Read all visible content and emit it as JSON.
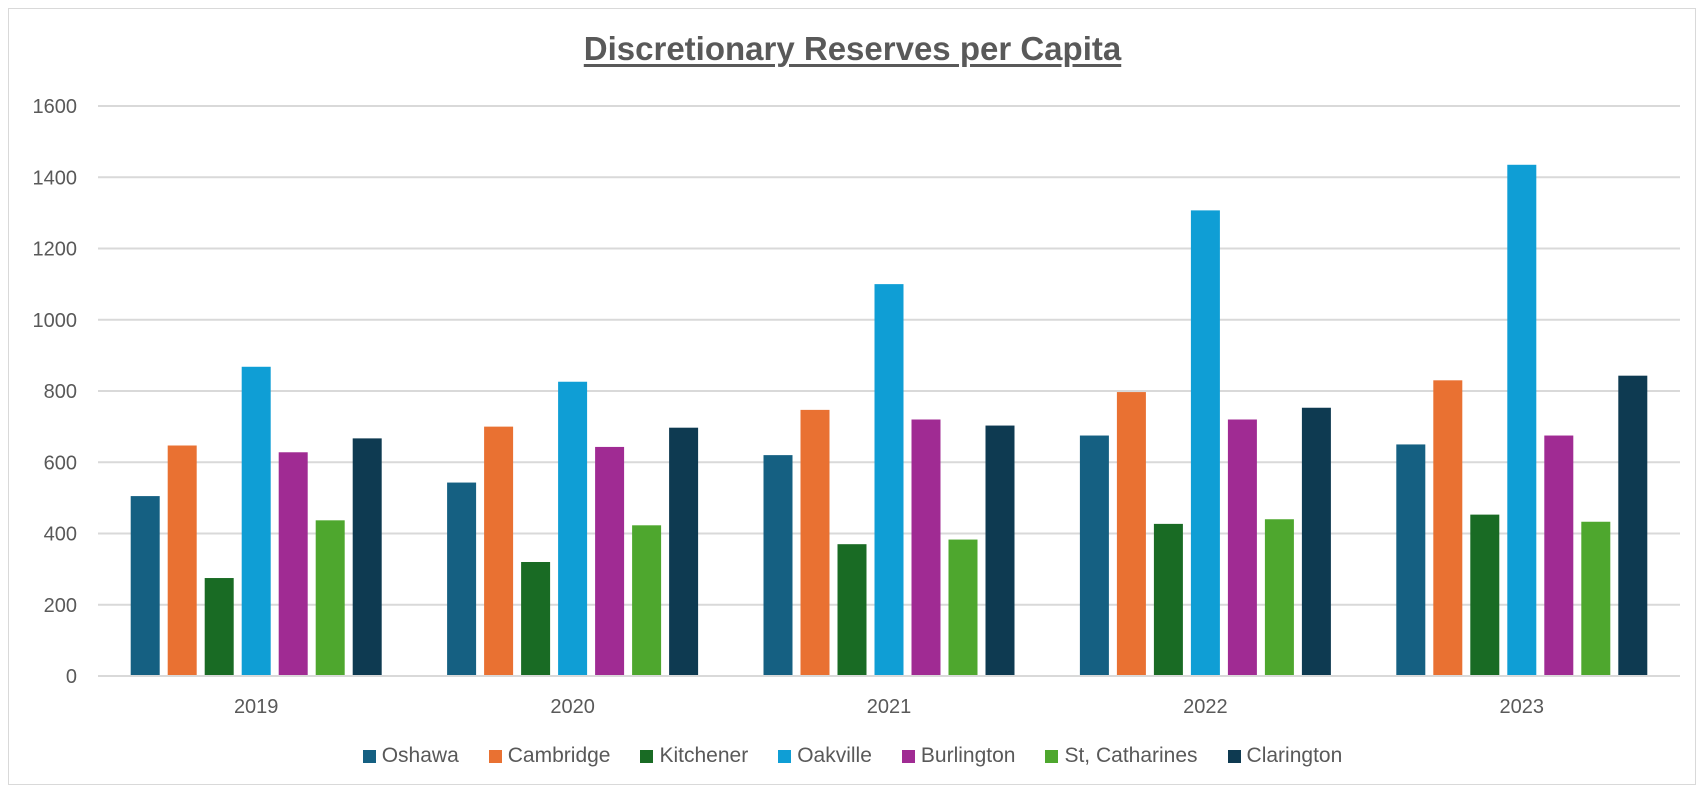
{
  "chart_data": {
    "type": "bar",
    "title": "Discretionary Reserves per Capita",
    "xlabel": "",
    "ylabel": "",
    "ylim": [
      0,
      1600
    ],
    "yticks": [
      0,
      200,
      400,
      600,
      800,
      1000,
      1200,
      1400,
      1600
    ],
    "grid": true,
    "legend_position": "bottom",
    "categories": [
      "2019",
      "2020",
      "2021",
      "2022",
      "2023"
    ],
    "series": [
      {
        "name": "Oshawa",
        "color": "#156082",
        "values": [
          505,
          543,
          620,
          675,
          650
        ]
      },
      {
        "name": "Cambridge",
        "color": "#E97132",
        "values": [
          647,
          700,
          747,
          797,
          830
        ]
      },
      {
        "name": "Kitchener",
        "color": "#196B24",
        "values": [
          275,
          320,
          370,
          427,
          453
        ]
      },
      {
        "name": "Oakville",
        "color": "#0F9ED5",
        "values": [
          868,
          826,
          1100,
          1307,
          1435
        ]
      },
      {
        "name": "Burlington",
        "color": "#A02B93",
        "values": [
          628,
          643,
          720,
          720,
          675
        ]
      },
      {
        "name": "St, Catharines",
        "color": "#4EA72E",
        "values": [
          437,
          423,
          383,
          440,
          433
        ]
      },
      {
        "name": "Clarington",
        "color": "#0E3A51",
        "values": [
          667,
          697,
          703,
          753,
          843
        ]
      }
    ]
  }
}
